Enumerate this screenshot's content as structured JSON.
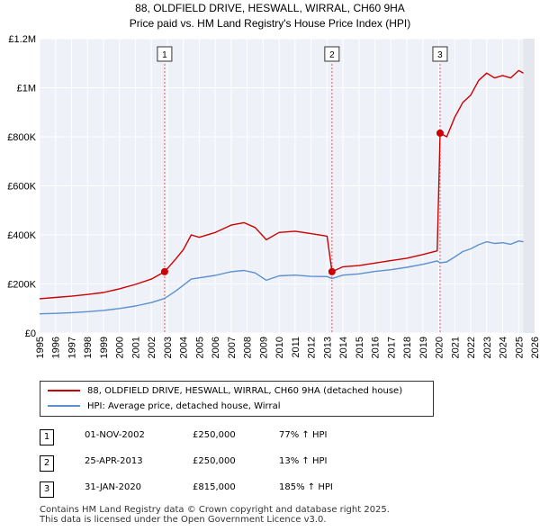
{
  "chart_data": {
    "type": "line",
    "title": "88, OLDFIELD DRIVE, HESWALL, WIRRAL, CH60 9HA",
    "subtitle": "Price paid vs. HM Land Registry's House Price Index (HPI)",
    "x_range": [
      1995,
      2026
    ],
    "ylim": [
      0,
      1200000
    ],
    "y_ticks": [
      0,
      200000,
      400000,
      600000,
      800000,
      1000000,
      1200000
    ],
    "y_tick_labels": [
      "£0",
      "£200K",
      "£400K",
      "£600K",
      "£800K",
      "£1M",
      "£1.2M"
    ],
    "x_ticks": [
      1995,
      1996,
      1997,
      1998,
      1999,
      2000,
      2001,
      2002,
      2003,
      2004,
      2005,
      2006,
      2007,
      2008,
      2009,
      2010,
      2011,
      2012,
      2013,
      2014,
      2015,
      2016,
      2017,
      2018,
      2019,
      2020,
      2021,
      2022,
      2023,
      2024,
      2025,
      2026
    ],
    "series": [
      {
        "name": "88, OLDFIELD DRIVE, HESWALL, WIRRAL, CH60 9HA (detached house)",
        "color": "#cc0000",
        "x": [
          1995.0,
          1996.0,
          1997.0,
          1998.0,
          1999.0,
          2000.0,
          2001.0,
          2002.0,
          2002.83,
          2003.5,
          2004.0,
          2004.5,
          2005.0,
          2006.0,
          2007.0,
          2007.8,
          2008.5,
          2009.2,
          2010.0,
          2011.0,
          2012.0,
          2013.0,
          2013.31,
          2014.0,
          2015.0,
          2016.0,
          2017.0,
          2018.0,
          2019.0,
          2019.9,
          2020.08,
          2020.5,
          2021.0,
          2021.5,
          2022.0,
          2022.5,
          2023.0,
          2023.5,
          2024.0,
          2024.5,
          2025.0,
          2025.3
        ],
        "values": [
          140000,
          145000,
          150000,
          157000,
          165000,
          180000,
          198000,
          220000,
          250000,
          300000,
          340000,
          400000,
          390000,
          410000,
          440000,
          450000,
          430000,
          380000,
          410000,
          415000,
          405000,
          395000,
          250000,
          270000,
          275000,
          285000,
          295000,
          305000,
          320000,
          335000,
          815000,
          800000,
          880000,
          940000,
          970000,
          1030000,
          1060000,
          1040000,
          1050000,
          1040000,
          1070000,
          1060000
        ]
      },
      {
        "name": "HPI: Average price, detached house, Wirral",
        "color": "#5b8fd0",
        "x": [
          1995.0,
          1996.0,
          1997.0,
          1998.0,
          1999.0,
          2000.0,
          2001.0,
          2002.0,
          2002.83,
          2003.5,
          2004.0,
          2004.5,
          2005.0,
          2006.0,
          2007.0,
          2007.8,
          2008.5,
          2009.2,
          2010.0,
          2011.0,
          2012.0,
          2013.0,
          2013.31,
          2014.0,
          2015.0,
          2016.0,
          2017.0,
          2018.0,
          2019.0,
          2019.9,
          2020.08,
          2020.5,
          2021.0,
          2021.5,
          2022.0,
          2022.5,
          2023.0,
          2023.5,
          2024.0,
          2024.5,
          2025.0,
          2025.3
        ],
        "values": [
          78000,
          80000,
          83000,
          87000,
          92000,
          100000,
          110000,
          124000,
          141000,
          170000,
          195000,
          220000,
          225000,
          235000,
          250000,
          255000,
          245000,
          215000,
          233000,
          236000,
          231000,
          230000,
          222000,
          236000,
          241000,
          251000,
          258000,
          268000,
          280000,
          294000,
          286000,
          290000,
          310000,
          332000,
          343000,
          360000,
          372000,
          365000,
          368000,
          362000,
          375000,
          372000
        ]
      }
    ],
    "markers": [
      {
        "label": "1",
        "x": 2002.83,
        "value": 250000
      },
      {
        "label": "2",
        "x": 2013.31,
        "value": 250000
      },
      {
        "label": "3",
        "x": 2020.08,
        "value": 815000
      }
    ]
  },
  "legend": {
    "property_label": "88, OLDFIELD DRIVE, HESWALL, WIRRAL, CH60 9HA (detached house)",
    "hpi_label": "HPI: Average price, detached house, Wirral"
  },
  "sales": [
    {
      "num": "1",
      "date": "01-NOV-2002",
      "price": "£250,000",
      "hpi": "77% ↑ HPI"
    },
    {
      "num": "2",
      "date": "25-APR-2013",
      "price": "£250,000",
      "hpi": "13% ↑ HPI"
    },
    {
      "num": "3",
      "date": "31-JAN-2020",
      "price": "£815,000",
      "hpi": "185% ↑ HPI"
    }
  ],
  "footer": {
    "line1": "Contains HM Land Registry data © Crown copyright and database right 2025.",
    "line2": "This data is licensed under the Open Government Licence v3.0."
  }
}
